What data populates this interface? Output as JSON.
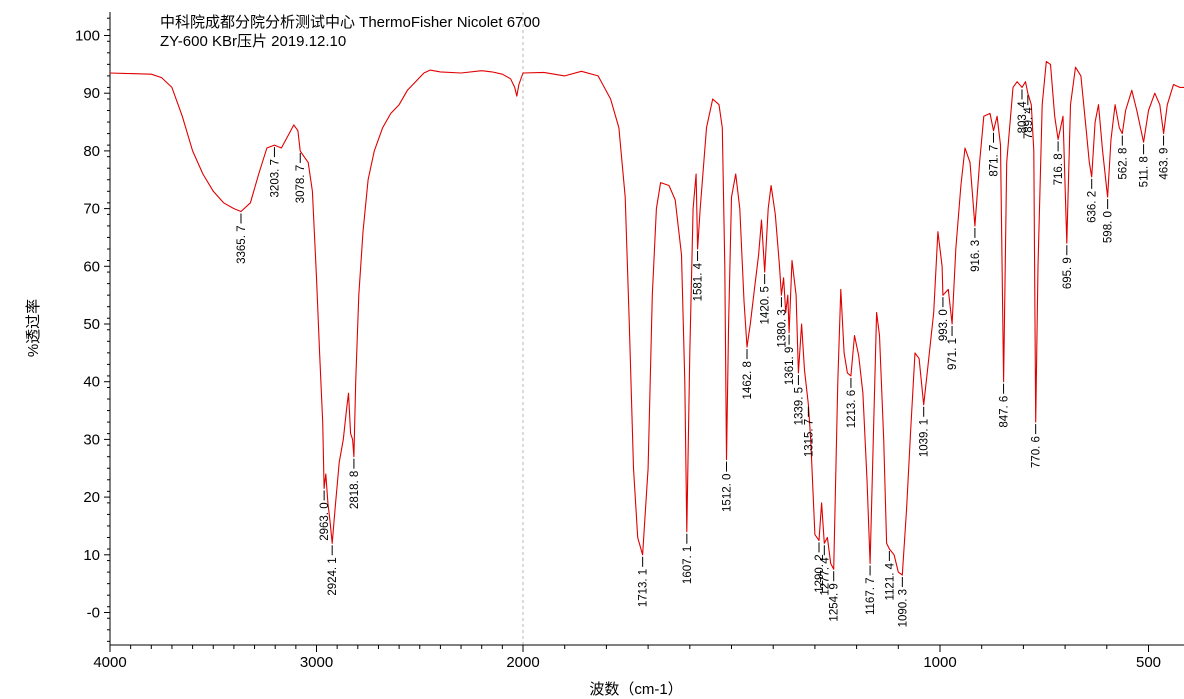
{
  "chart_data": {
    "type": "line",
    "title_lines": [
      "中科院成都分院分析测试中心 ThermoFisher Nicolet 6700",
      "ZY-600 KBr压片 2019.12.10"
    ],
    "xlabel": "波数（cm-1）",
    "ylabel": "%透过率",
    "xlim": [
      4000,
      400
    ],
    "ylim": [
      -8,
      105
    ],
    "x_ticks": [
      4000,
      3000,
      2000,
      1000,
      500
    ],
    "y_ticks": [
      0,
      10,
      20,
      30,
      40,
      50,
      60,
      70,
      80,
      90,
      100
    ],
    "x_tick_labels": [
      "4000",
      "3000",
      "2000",
      "1000",
      "500"
    ],
    "y_tick_labels": [
      "-0",
      "10",
      "20",
      "30",
      "40",
      "50",
      "60",
      "70",
      "80",
      "90",
      "100"
    ],
    "grid": false,
    "legend": "none",
    "series_color": "#e00000",
    "reference_line_x": 2000,
    "spectrum": [
      [
        4000,
        93.5
      ],
      [
        3900,
        93.4
      ],
      [
        3800,
        93.3
      ],
      [
        3750,
        92.7
      ],
      [
        3700,
        91.0
      ],
      [
        3650,
        86.0
      ],
      [
        3600,
        80.0
      ],
      [
        3550,
        76.0
      ],
      [
        3500,
        73.0
      ],
      [
        3450,
        71.0
      ],
      [
        3400,
        70.0
      ],
      [
        3365.7,
        69.5
      ],
      [
        3320,
        71.0
      ],
      [
        3280,
        76.0
      ],
      [
        3240,
        80.5
      ],
      [
        3203.7,
        81.0
      ],
      [
        3170,
        80.5
      ],
      [
        3140,
        82.5
      ],
      [
        3110,
        84.5
      ],
      [
        3090,
        83.5
      ],
      [
        3078.7,
        80.0
      ],
      [
        3060,
        79.0
      ],
      [
        3040,
        78.0
      ],
      [
        3020,
        73.0
      ],
      [
        3000,
        58.0
      ],
      [
        2985,
        45.0
      ],
      [
        2970,
        33.0
      ],
      [
        2963,
        21.5
      ],
      [
        2955,
        24.0
      ],
      [
        2945,
        19.0
      ],
      [
        2935,
        16.0
      ],
      [
        2924.1,
        12.0
      ],
      [
        2910,
        18.0
      ],
      [
        2890,
        26.0
      ],
      [
        2870,
        30.0
      ],
      [
        2855,
        35.0
      ],
      [
        2845,
        38.0
      ],
      [
        2835,
        31.0
      ],
      [
        2825,
        30.0
      ],
      [
        2818.8,
        27.0
      ],
      [
        2810,
        40.0
      ],
      [
        2795,
        55.0
      ],
      [
        2775,
        66.0
      ],
      [
        2750,
        75.0
      ],
      [
        2720,
        80.0
      ],
      [
        2680,
        84.0
      ],
      [
        2640,
        86.5
      ],
      [
        2600,
        88.0
      ],
      [
        2560,
        90.5
      ],
      [
        2520,
        92.0
      ],
      [
        2480,
        93.5
      ],
      [
        2450,
        94.0
      ],
      [
        2400,
        93.7
      ],
      [
        2300,
        93.5
      ],
      [
        2200,
        93.9
      ],
      [
        2150,
        93.7
      ],
      [
        2100,
        93.3
      ],
      [
        2060,
        92.5
      ],
      [
        2040,
        91.0
      ],
      [
        2030,
        89.5
      ],
      [
        2020,
        91.5
      ],
      [
        2000,
        93.5
      ],
      [
        1950,
        93.6
      ],
      [
        1900,
        93.0
      ],
      [
        1860,
        93.8
      ],
      [
        1820,
        93.0
      ],
      [
        1790,
        89.0
      ],
      [
        1770,
        84.0
      ],
      [
        1755,
        72.0
      ],
      [
        1745,
        50.0
      ],
      [
        1735,
        25.0
      ],
      [
        1725,
        13.0
      ],
      [
        1713.1,
        10.0
      ],
      [
        1700,
        25.0
      ],
      [
        1690,
        55.0
      ],
      [
        1680,
        70.0
      ],
      [
        1670,
        74.5
      ],
      [
        1650,
        74.0
      ],
      [
        1635,
        71.5
      ],
      [
        1620,
        62.0
      ],
      [
        1612,
        40.0
      ],
      [
        1607.1,
        14.0
      ],
      [
        1600,
        45.0
      ],
      [
        1592,
        70.0
      ],
      [
        1585,
        76.0
      ],
      [
        1581.4,
        63.0
      ],
      [
        1575,
        70.0
      ],
      [
        1560,
        84.0
      ],
      [
        1545,
        89.0
      ],
      [
        1530,
        88.0
      ],
      [
        1522,
        84.0
      ],
      [
        1516,
        60.0
      ],
      [
        1512,
        26.5
      ],
      [
        1507,
        50.0
      ],
      [
        1500,
        72.0
      ],
      [
        1490,
        76.0
      ],
      [
        1480,
        70.0
      ],
      [
        1470,
        54.0
      ],
      [
        1462.8,
        46.0
      ],
      [
        1455,
        50.0
      ],
      [
        1445,
        56.0
      ],
      [
        1435,
        62.0
      ],
      [
        1428,
        68.0
      ],
      [
        1420.5,
        59.0
      ],
      [
        1412,
        70.0
      ],
      [
        1405,
        74.0
      ],
      [
        1395,
        69.0
      ],
      [
        1385,
        60.0
      ],
      [
        1380.3,
        55.0
      ],
      [
        1375,
        58.0
      ],
      [
        1370,
        52.0
      ],
      [
        1365,
        55.0
      ],
      [
        1361.9,
        48.5
      ],
      [
        1355,
        61.0
      ],
      [
        1345,
        55.0
      ],
      [
        1339.5,
        41.5
      ],
      [
        1332,
        50.0
      ],
      [
        1325,
        42.0
      ],
      [
        1315.7,
        36.0
      ],
      [
        1310,
        30.0
      ],
      [
        1300,
        13.5
      ],
      [
        1290.2,
        12.5
      ],
      [
        1284,
        19.0
      ],
      [
        1277.4,
        12.0
      ],
      [
        1270,
        13.0
      ],
      [
        1262,
        8.5
      ],
      [
        1254.9,
        7.5
      ],
      [
        1245,
        40.0
      ],
      [
        1238,
        56.0
      ],
      [
        1230,
        45.0
      ],
      [
        1222,
        41.5
      ],
      [
        1213.6,
        41.0
      ],
      [
        1205,
        48.0
      ],
      [
        1195,
        44.5
      ],
      [
        1185,
        38.0
      ],
      [
        1175,
        23.0
      ],
      [
        1167.7,
        8.5
      ],
      [
        1160,
        30.0
      ],
      [
        1152,
        52.0
      ],
      [
        1145,
        48.0
      ],
      [
        1135,
        30.0
      ],
      [
        1128,
        12.0
      ],
      [
        1121.4,
        11.0
      ],
      [
        1110,
        10.0
      ],
      [
        1100,
        7.0
      ],
      [
        1090.3,
        6.5
      ],
      [
        1080,
        18.0
      ],
      [
        1070,
        32.0
      ],
      [
        1060,
        45.0
      ],
      [
        1050,
        44.0
      ],
      [
        1039.1,
        36.0
      ],
      [
        1030,
        42.0
      ],
      [
        1015,
        52.0
      ],
      [
        1005,
        66.0
      ],
      [
        995,
        60.0
      ],
      [
        993,
        55.0
      ],
      [
        980,
        56.0
      ],
      [
        971.1,
        50.0
      ],
      [
        962,
        63.0
      ],
      [
        950,
        74.0
      ],
      [
        940,
        80.5
      ],
      [
        928,
        78.0
      ],
      [
        916.3,
        67.0
      ],
      [
        905,
        78.0
      ],
      [
        895,
        86.0
      ],
      [
        880,
        86.5
      ],
      [
        871.7,
        83.5
      ],
      [
        863,
        86.0
      ],
      [
        855,
        81.0
      ],
      [
        847.6,
        40.0
      ],
      [
        840,
        78.0
      ],
      [
        825,
        91.0
      ],
      [
        815,
        92.0
      ],
      [
        803.4,
        91.0
      ],
      [
        795,
        92.0
      ],
      [
        789.4,
        90.0
      ],
      [
        781,
        88.0
      ],
      [
        775,
        80.0
      ],
      [
        770.6,
        33.0
      ],
      [
        765,
        60.0
      ],
      [
        755,
        88.0
      ],
      [
        745,
        95.5
      ],
      [
        735,
        95.0
      ],
      [
        725,
        86.0
      ],
      [
        716.8,
        82.0
      ],
      [
        705,
        86.0
      ],
      [
        695.9,
        64.0
      ],
      [
        687,
        88.0
      ],
      [
        675,
        94.5
      ],
      [
        662,
        93.0
      ],
      [
        650,
        84.0
      ],
      [
        642,
        78.0
      ],
      [
        636.2,
        75.5
      ],
      [
        628,
        85.0
      ],
      [
        620,
        88.0
      ],
      [
        610,
        80.0
      ],
      [
        598,
        72.0
      ],
      [
        590,
        82.0
      ],
      [
        580,
        88.0
      ],
      [
        570,
        84.0
      ],
      [
        562.8,
        83.0
      ],
      [
        555,
        87.0
      ],
      [
        540,
        90.5
      ],
      [
        528,
        87.0
      ],
      [
        511.8,
        81.5
      ],
      [
        500,
        87.0
      ],
      [
        485,
        90.0
      ],
      [
        473,
        88.0
      ],
      [
        463.9,
        83.0
      ],
      [
        455,
        88.0
      ],
      [
        440,
        91.5
      ],
      [
        425,
        91.0
      ],
      [
        410,
        91.0
      ],
      [
        400,
        91.0
      ]
    ],
    "peaks": [
      {
        "x": 3365.7,
        "label": "3365. 7"
      },
      {
        "x": 3203.7,
        "label": "3203. 7"
      },
      {
        "x": 3078.7,
        "label": "3078. 7"
      },
      {
        "x": 2963.0,
        "label": "2963. 0"
      },
      {
        "x": 2924.1,
        "label": "2924. 1"
      },
      {
        "x": 2818.8,
        "label": "2818. 8"
      },
      {
        "x": 1713.1,
        "label": "1713. 1"
      },
      {
        "x": 1607.1,
        "label": "1607. 1"
      },
      {
        "x": 1581.4,
        "label": "1581. 4"
      },
      {
        "x": 1512.0,
        "label": "1512. 0"
      },
      {
        "x": 1462.8,
        "label": "1462. 8"
      },
      {
        "x": 1420.5,
        "label": "1420. 5"
      },
      {
        "x": 1380.3,
        "label": "1380. 3"
      },
      {
        "x": 1361.9,
        "label": "1361. 9"
      },
      {
        "x": 1339.5,
        "label": "1339. 5"
      },
      {
        "x": 1315.7,
        "label": "1315. 7"
      },
      {
        "x": 1290.2,
        "label": "1290. 2"
      },
      {
        "x": 1277.4,
        "label": "1277. 4"
      },
      {
        "x": 1254.9,
        "label": "1254. 9"
      },
      {
        "x": 1213.6,
        "label": "1213. 6"
      },
      {
        "x": 1167.7,
        "label": "1167. 7"
      },
      {
        "x": 1121.4,
        "label": "1121. 4"
      },
      {
        "x": 1090.3,
        "label": "1090. 3"
      },
      {
        "x": 1039.1,
        "label": "1039. 1"
      },
      {
        "x": 993.0,
        "label": "993. 0"
      },
      {
        "x": 971.1,
        "label": "971. 1"
      },
      {
        "x": 916.3,
        "label": "916. 3"
      },
      {
        "x": 871.7,
        "label": "871. 7"
      },
      {
        "x": 847.6,
        "label": "847. 6"
      },
      {
        "x": 803.4,
        "label": "803. 4"
      },
      {
        "x": 789.4,
        "label": "789. 4"
      },
      {
        "x": 770.6,
        "label": "770. 6"
      },
      {
        "x": 716.8,
        "label": "716. 8"
      },
      {
        "x": 695.9,
        "label": "695. 9"
      },
      {
        "x": 636.2,
        "label": "636. 2"
      },
      {
        "x": 598.0,
        "label": "598. 0"
      },
      {
        "x": 562.8,
        "label": "562. 8"
      },
      {
        "x": 511.8,
        "label": "511. 8"
      },
      {
        "x": 463.9,
        "label": "463. 9"
      }
    ]
  }
}
